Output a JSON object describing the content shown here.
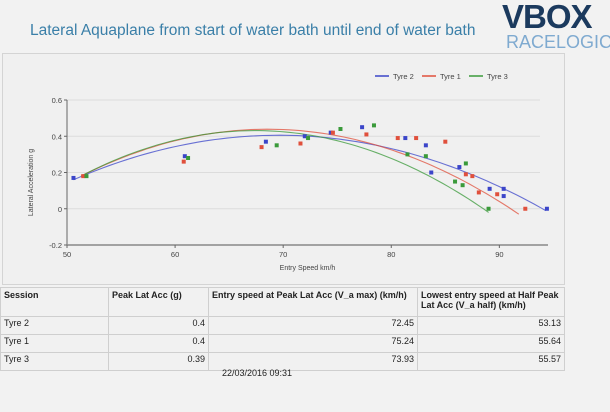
{
  "header": {
    "title": "Lateral Aquaplane from start of water bath until end of water bath",
    "logo_main": "VBOX",
    "logo_sub": "RACELOGIC"
  },
  "chart_data": {
    "type": "scatter",
    "title": "Lateral Aquaplane from start of water bath until end of water bath",
    "xlabel": "Entry Speed km/h",
    "ylabel": "Lateral Acceleration g",
    "xlim": [
      50,
      94.5
    ],
    "ylim": [
      -0.2,
      0.6
    ],
    "xticks": [
      50,
      60,
      70,
      80,
      90
    ],
    "yticks": [
      -0.2,
      0,
      0.2,
      0.4,
      0.6
    ],
    "ytick_labels": [
      "-0.2",
      "0",
      "0.2",
      "0.4",
      "0.6"
    ],
    "grid": true,
    "legend_position": "top-right",
    "series": [
      {
        "name": "Tyre 2",
        "color": "#3b45c9",
        "points": [
          [
            50.6,
            0.17
          ],
          [
            60.9,
            0.29
          ],
          [
            68.4,
            0.37
          ],
          [
            72.0,
            0.4
          ],
          [
            74.4,
            0.42
          ],
          [
            77.3,
            0.45
          ],
          [
            81.3,
            0.39
          ],
          [
            83.2,
            0.35
          ],
          [
            83.7,
            0.2
          ],
          [
            86.3,
            0.23
          ],
          [
            89.1,
            0.11
          ],
          [
            90.4,
            0.11
          ],
          [
            90.4,
            0.07
          ],
          [
            94.4,
            0.0
          ]
        ],
        "fit": {
          "peak_x": 72.45,
          "peak_y": 0.4,
          "start": [
            50.6,
            0.16
          ],
          "end": [
            94.3,
            -0.01
          ]
        }
      },
      {
        "name": "Tyre 1",
        "color": "#e0503c",
        "points": [
          [
            51.5,
            0.18
          ],
          [
            60.8,
            0.26
          ],
          [
            68.0,
            0.34
          ],
          [
            71.6,
            0.36
          ],
          [
            74.6,
            0.42
          ],
          [
            77.7,
            0.41
          ],
          [
            80.6,
            0.39
          ],
          [
            82.3,
            0.39
          ],
          [
            85.0,
            0.37
          ],
          [
            86.9,
            0.19
          ],
          [
            87.5,
            0.18
          ],
          [
            88.1,
            0.09
          ],
          [
            89.8,
            0.08
          ],
          [
            92.4,
            0.0
          ]
        ],
        "fit": {
          "peak_x": 75.24,
          "peak_y": 0.4,
          "start": [
            51.3,
            0.18
          ],
          "end": [
            91.8,
            -0.03
          ]
        }
      },
      {
        "name": "Tyre 3",
        "color": "#3a9a3a",
        "points": [
          [
            51.8,
            0.18
          ],
          [
            61.2,
            0.28
          ],
          [
            69.4,
            0.35
          ],
          [
            72.3,
            0.39
          ],
          [
            75.3,
            0.44
          ],
          [
            78.4,
            0.46
          ],
          [
            81.5,
            0.3
          ],
          [
            83.2,
            0.29
          ],
          [
            85.9,
            0.15
          ],
          [
            86.6,
            0.13
          ],
          [
            86.9,
            0.25
          ],
          [
            89.0,
            0.0
          ]
        ],
        "fit": {
          "peak_x": 73.93,
          "peak_y": 0.39,
          "start": [
            51.3,
            0.18
          ],
          "end": [
            89.0,
            -0.02
          ]
        }
      }
    ]
  },
  "table": {
    "headers": [
      "Session",
      "Peak Lat Acc (g)",
      "Entry speed at Peak Lat Acc (V_a max) (km/h)",
      "Lowest entry speed at Half Peak Lat Acc (V_a half) (km/h)"
    ],
    "rows": [
      [
        "Tyre 2",
        "0.4",
        "72.45",
        "53.13"
      ],
      [
        "Tyre 1",
        "0.4",
        "75.24",
        "55.64"
      ],
      [
        "Tyre 3",
        "0.39",
        "73.93",
        "55.57"
      ]
    ]
  },
  "timestamp": "22/03/2016 09:31"
}
